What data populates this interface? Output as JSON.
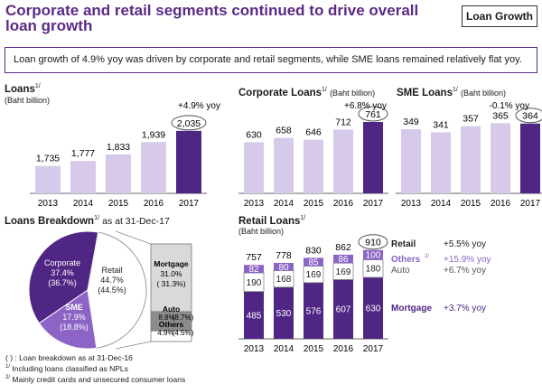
{
  "title_line1": "Corporate and retail segments continued to drive overall",
  "title_line2": "loan growth",
  "badge": "Loan Growth",
  "summary": "Loan growth of 4.9% yoy was driven by corporate and retail segments, while SME loans remained relatively flat yoy.",
  "footnote_marker": "1/",
  "footnote_marker2": "2/",
  "chart_data": [
    {
      "type": "bar",
      "title": "Loans",
      "unit": "(Baht billion)",
      "growth": "+4.9% yoy",
      "categories": [
        "2013",
        "2014",
        "2015",
        "2016",
        "2017"
      ],
      "values": [
        1735,
        1777,
        1833,
        1939,
        2035
      ],
      "labels": [
        "1,735",
        "1,777",
        "1,833",
        "1,939",
        "2,035"
      ],
      "ylim": [
        1500,
        2150
      ]
    },
    {
      "type": "bar",
      "title": "Corporate Loans",
      "unit": "(Baht billion)",
      "growth": "+6.8% yoy",
      "categories": [
        "2013",
        "2014",
        "2015",
        "2016",
        "2017"
      ],
      "values": [
        630,
        658,
        646,
        712,
        761
      ],
      "labels": [
        "630",
        "658",
        "646",
        "712",
        "761"
      ],
      "ylim": [
        300,
        790
      ]
    },
    {
      "type": "bar",
      "title": "SME Loans",
      "unit": "(Baht billion)",
      "growth": "-0.1% yoy",
      "categories": [
        "2013",
        "2014",
        "2015",
        "2016",
        "2017"
      ],
      "values": [
        349,
        341,
        357,
        365,
        364
      ],
      "labels": [
        "349",
        "341",
        "357",
        "365",
        "364"
      ],
      "ylim": [
        180,
        380
      ]
    },
    {
      "type": "pie",
      "title": "Loans Breakdown",
      "subtitle": "as at 31-Dec-17",
      "slices": [
        {
          "name": "Corporate",
          "value": 37.4,
          "prev": "(36.7%)",
          "label": "37.4%"
        },
        {
          "name": "SME",
          "value": 17.9,
          "prev": "(18.8%)",
          "label": "17.9%"
        },
        {
          "name": "Retail",
          "value": 44.7,
          "prev": "(44.5%)",
          "label": "44.7%"
        }
      ],
      "retail_breakdown": [
        {
          "name": "Mortgage",
          "value": 31.0,
          "prev": "( 31.3%)",
          "label": "31.0%"
        },
        {
          "name": "Auto",
          "value": 8.8,
          "prev": "(8.7%)",
          "label": "8.8%"
        },
        {
          "name": "Others",
          "value": 4.9,
          "prev": "(4.5%)",
          "label": "4.9%"
        }
      ]
    },
    {
      "type": "stacked-bar",
      "title": "Retail Loans",
      "unit": "(Baht billion)",
      "categories": [
        "2013",
        "2014",
        "2015",
        "2016",
        "2017"
      ],
      "totals": [
        757,
        778,
        830,
        862,
        910
      ],
      "series": [
        {
          "name": "Mortgage",
          "values": [
            485,
            530,
            576,
            607,
            630
          ],
          "growth": "+3.7% yoy"
        },
        {
          "name": "Auto",
          "values": [
            190,
            168,
            169,
            169,
            180
          ],
          "growth": "+6.7% yoy"
        },
        {
          "name": "Others",
          "values": [
            82,
            80,
            85,
            86,
            100
          ],
          "growth": "+15.9% yoy"
        }
      ],
      "retail_total_label": "Retail",
      "retail_growth": "+5.5% yoy"
    }
  ],
  "notes": {
    "line1": "( ) : Loan breakdown as at 31-Dec-16",
    "line2": "Including loans classified as NPLs",
    "line3": "Mainly credit cards and unsecured consumer loans"
  },
  "colors": {
    "purple_dark": "#4f2683",
    "purple_light": "#d7c9ea",
    "purple_mid": "#8b64c6",
    "grey": "#d9d9d9",
    "grey_dark": "#8c8c8c"
  }
}
